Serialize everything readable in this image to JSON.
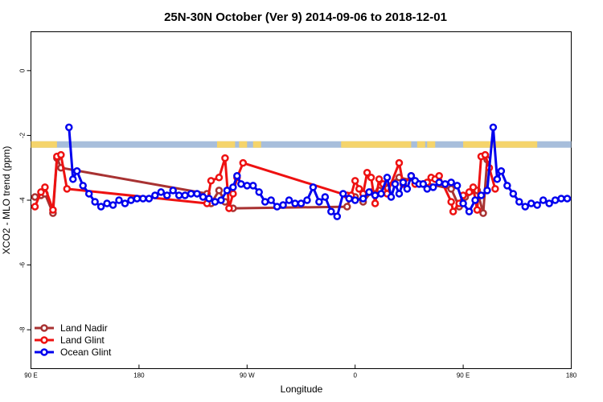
{
  "chart_data": {
    "type": "line",
    "title": "25N-30N October (Ver 9)   2014-09-06 to 2018-12-01",
    "xlabel": "Longitude",
    "ylabel": "XCO2 - MLO trend (ppm)",
    "xlim": [
      -90,
      180
    ],
    "ylim": [
      -9.2,
      1.2
    ],
    "x_ticks": [
      {
        "value": -90,
        "label": "90 E"
      },
      {
        "value": -36,
        "label": "180"
      },
      {
        "value": 18,
        "label": "90 W"
      },
      {
        "value": 72,
        "label": "0"
      },
      {
        "value": 126,
        "label": "90 E"
      },
      {
        "value": 180,
        "label": "180"
      }
    ],
    "y_ticks": [
      0,
      -2,
      -4,
      -6,
      -8
    ],
    "legend_position": "bottom-left",
    "land_ocean_strip": {
      "y_range": [
        -2.38,
        -2.18
      ],
      "ocean_color": "#a7bedb",
      "land_color": "#f5d46b",
      "land_segments": [
        [
          -90,
          -77
        ],
        [
          3,
          12
        ],
        [
          14,
          18
        ],
        [
          21,
          25
        ],
        [
          65,
          100
        ],
        [
          103,
          107
        ],
        [
          108,
          112
        ],
        [
          126,
          163
        ]
      ]
    },
    "series": [
      {
        "name": "Land Nadir",
        "color": "#a83232",
        "x": [
          -88,
          -85,
          -83,
          -79,
          -77,
          -75,
          -2,
          0,
          4,
          7,
          11,
          68,
          70,
          72,
          76,
          80,
          84,
          94,
          120,
          124,
          127,
          133,
          136,
          138
        ],
        "y": [
          -3.9,
          -3.85,
          -3.8,
          -4.4,
          -2.7,
          -3.0,
          -3.8,
          -4.1,
          -3.7,
          -4.05,
          -4.25,
          -4.2,
          -3.85,
          -3.9,
          -4.05,
          -3.75,
          -3.7,
          -3.3,
          -3.65,
          -4.2,
          -3.9,
          -3.7,
          -4.4,
          -2.75
        ]
      },
      {
        "name": "Land Glint",
        "color": "#ee1111",
        "x": [
          -88,
          -85,
          -83,
          -79,
          -77,
          -75,
          -72,
          -2,
          0,
          4,
          7,
          9,
          11,
          13,
          16,
          68,
          70,
          72,
          74,
          76,
          78,
          80,
          82,
          84,
          86,
          88,
          94,
          96,
          100,
          102,
          104,
          106,
          108,
          110,
          112,
          114,
          120,
          121,
          124,
          126,
          129,
          131,
          133,
          135,
          137,
          139,
          142
        ],
        "y": [
          -4.2,
          -3.75,
          -3.6,
          -4.3,
          -2.65,
          -2.6,
          -3.65,
          -4.1,
          -3.4,
          -3.3,
          -2.7,
          -4.25,
          -3.8,
          -3.3,
          -2.85,
          -3.85,
          -3.85,
          -3.4,
          -3.65,
          -3.8,
          -3.15,
          -3.3,
          -4.1,
          -3.35,
          -3.5,
          -3.8,
          -2.85,
          -3.5,
          -3.25,
          -3.5,
          -3.5,
          -3.5,
          -3.45,
          -3.3,
          -3.35,
          -3.25,
          -4.05,
          -4.35,
          -4.1,
          -3.85,
          -3.75,
          -3.6,
          -4.3,
          -2.65,
          -2.6,
          -3.0,
          -3.65
        ]
      },
      {
        "name": "Ocean Glint",
        "color": "#0000ee",
        "x": [
          -71,
          -69,
          -67,
          -64,
          -61,
          -58,
          -55,
          -52,
          -49,
          -46,
          -43,
          -40,
          -37,
          -34,
          -31,
          -28,
          -25,
          -22,
          -19,
          -16,
          -13,
          -10,
          -7,
          -4,
          -1,
          2,
          5,
          8,
          11,
          13,
          15,
          18,
          21,
          24,
          27,
          30,
          33,
          36,
          39,
          42,
          45,
          48,
          51,
          54,
          57,
          60,
          63,
          66,
          69,
          72,
          76,
          79,
          82,
          85,
          88,
          90,
          92,
          94,
          96,
          98,
          100,
          102,
          104,
          106,
          108,
          111,
          114,
          117,
          120,
          123,
          126,
          129,
          132,
          135,
          138,
          141,
          143,
          145,
          148,
          151,
          154,
          157,
          160,
          163,
          166,
          169,
          172,
          175,
          178
        ],
        "y": [
          -1.75,
          -3.35,
          -3.1,
          -3.55,
          -3.8,
          -4.05,
          -4.2,
          -4.1,
          -4.15,
          -4.0,
          -4.1,
          -4.0,
          -3.95,
          -3.95,
          -3.95,
          -3.85,
          -3.75,
          -3.85,
          -3.7,
          -3.85,
          -3.85,
          -3.8,
          -3.8,
          -3.9,
          -3.95,
          -4.05,
          -4.0,
          -3.7,
          -3.6,
          -3.25,
          -3.5,
          -3.55,
          -3.55,
          -3.75,
          -4.05,
          -4.0,
          -4.2,
          -4.15,
          -4.0,
          -4.1,
          -4.1,
          -4.0,
          -3.6,
          -4.05,
          -3.9,
          -4.35,
          -4.5,
          -3.8,
          -3.95,
          -4.0,
          -3.95,
          -3.75,
          -3.85,
          -3.8,
          -3.3,
          -3.9,
          -3.5,
          -3.8,
          -3.45,
          -3.65,
          -3.25,
          -3.4,
          -3.5,
          -3.5,
          -3.65,
          -3.6,
          -3.45,
          -3.5,
          -3.45,
          -3.55,
          -4.1,
          -4.35,
          -4.0,
          -3.85,
          -3.7,
          -1.75,
          -3.35,
          -3.1,
          -3.55,
          -3.8,
          -4.05,
          -4.2,
          -4.1,
          -4.15,
          -4.0,
          -4.1,
          -4.0,
          -3.95,
          -3.95
        ]
      }
    ]
  }
}
